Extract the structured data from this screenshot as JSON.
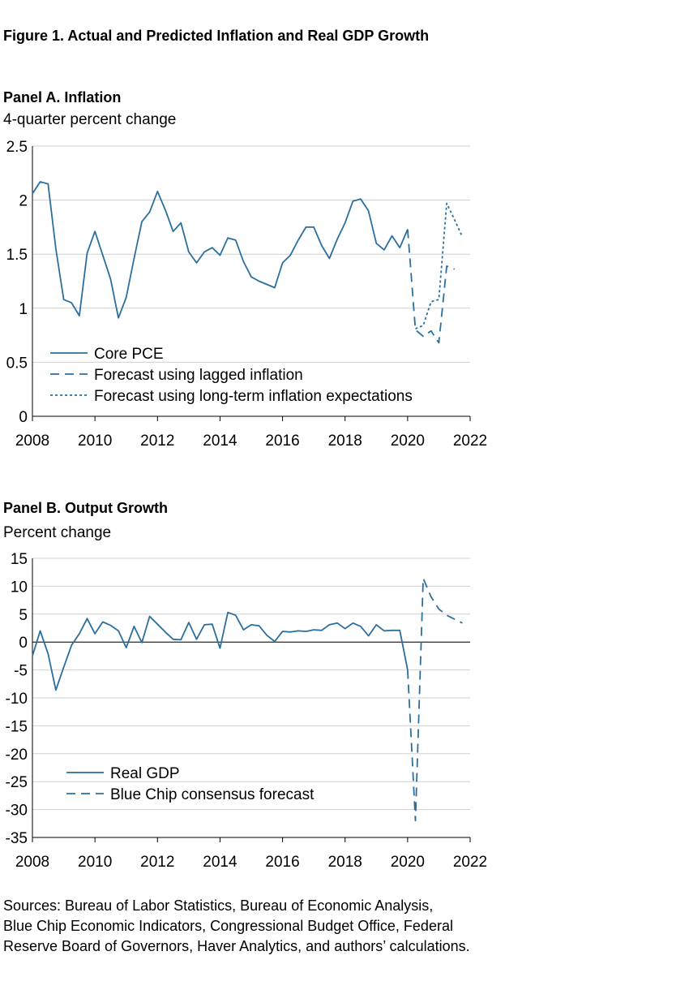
{
  "figure_title": "Figure 1. Actual and Predicted Inflation and Real GDP Growth",
  "sources": [
    "Sources: Bureau of Labor Statistics, Bureau of Economic Analysis,",
    "Blue Chip Economic Indicators, Congressional Budget Office, Federal",
    "Reserve Board of Governors, Haver Analytics, and authors’ calculations."
  ],
  "colors": {
    "series": "#2b6f9e",
    "grid": "#d0d0d0",
    "axis": "#000000"
  },
  "chart_data": [
    {
      "type": "line",
      "title": "Panel A. Inflation",
      "ylabel": "4-quarter percent change",
      "xlim": [
        2008,
        2022
      ],
      "ylim": [
        0,
        2.5
      ],
      "x_ticks": [
        "2008",
        "2010",
        "2012",
        "2014",
        "2016",
        "2018",
        "2020",
        "2022"
      ],
      "y_ticks": [
        "0",
        "0.5",
        "1",
        "1.5",
        "2",
        "2.5"
      ],
      "grid": true,
      "legend_position": "bottom-left",
      "series": [
        {
          "name": "Core PCE",
          "style": "solid",
          "x": [
            2008.0,
            2008.25,
            2008.5,
            2008.75,
            2009.0,
            2009.25,
            2009.5,
            2009.75,
            2010.0,
            2010.25,
            2010.5,
            2010.75,
            2011.0,
            2011.25,
            2011.5,
            2011.75,
            2012.0,
            2012.25,
            2012.5,
            2012.75,
            2013.0,
            2013.25,
            2013.5,
            2013.75,
            2014.0,
            2014.25,
            2014.5,
            2014.75,
            2015.0,
            2015.25,
            2015.5,
            2015.75,
            2016.0,
            2016.25,
            2016.5,
            2016.75,
            2017.0,
            2017.25,
            2017.5,
            2017.75,
            2018.0,
            2018.25,
            2018.5,
            2018.75,
            2019.0,
            2019.25,
            2019.5,
            2019.75,
            2020.0
          ],
          "y": [
            2.06,
            2.17,
            2.15,
            1.55,
            1.08,
            1.05,
            0.93,
            1.51,
            1.71,
            1.49,
            1.27,
            0.91,
            1.1,
            1.46,
            1.8,
            1.89,
            2.08,
            1.91,
            1.71,
            1.79,
            1.52,
            1.42,
            1.52,
            1.56,
            1.49,
            1.65,
            1.63,
            1.43,
            1.29,
            1.25,
            1.22,
            1.19,
            1.42,
            1.49,
            1.63,
            1.75,
            1.75,
            1.58,
            1.46,
            1.64,
            1.79,
            1.99,
            2.01,
            1.9,
            1.6,
            1.54,
            1.67,
            1.56,
            1.73
          ]
        },
        {
          "name": "Forecast using lagged inflation",
          "style": "dashed",
          "x": [
            2020.0,
            2020.25,
            2020.5,
            2020.75,
            2021.0,
            2021.25,
            2021.5
          ],
          "y": [
            1.73,
            0.8,
            0.74,
            0.79,
            0.68,
            1.39,
            1.36
          ]
        },
        {
          "name": "Forecast using long-term inflation expectations",
          "style": "dotted",
          "x": [
            2020.25,
            2020.5,
            2020.75,
            2021.0,
            2021.25,
            2021.5,
            2021.75
          ],
          "y": [
            0.81,
            0.84,
            1.06,
            1.08,
            1.97,
            1.82,
            1.66
          ]
        }
      ]
    },
    {
      "type": "line",
      "title": "Panel B. Output Growth",
      "ylabel": "Percent change",
      "xlim": [
        2008,
        2022
      ],
      "ylim": [
        -35,
        15
      ],
      "x_ticks": [
        "2008",
        "2010",
        "2012",
        "2014",
        "2016",
        "2018",
        "2020",
        "2022"
      ],
      "y_ticks": [
        "-35",
        "-30",
        "-25",
        "-20",
        "-15",
        "-10",
        "-5",
        "0",
        "5",
        "10",
        "15"
      ],
      "grid": true,
      "zero_line": true,
      "legend_position": "bottom-left",
      "series": [
        {
          "name": "Real GDP",
          "style": "solid",
          "x": [
            2008.0,
            2008.25,
            2008.5,
            2008.75,
            2009.0,
            2009.25,
            2009.5,
            2009.75,
            2010.0,
            2010.25,
            2010.5,
            2010.75,
            2011.0,
            2011.25,
            2011.5,
            2011.75,
            2012.0,
            2012.25,
            2012.5,
            2012.75,
            2013.0,
            2013.25,
            2013.5,
            2013.75,
            2014.0,
            2014.25,
            2014.5,
            2014.75,
            2015.0,
            2015.25,
            2015.5,
            2015.75,
            2016.0,
            2016.25,
            2016.5,
            2016.75,
            2017.0,
            2017.25,
            2017.5,
            2017.75,
            2018.0,
            2018.25,
            2018.5,
            2018.75,
            2019.0,
            2019.25,
            2019.5,
            2019.75,
            2020.0
          ],
          "y": [
            -2.5,
            2.0,
            -2.1,
            -8.6,
            -4.5,
            -0.6,
            1.5,
            4.2,
            1.5,
            3.6,
            3.0,
            2.0,
            -1.0,
            2.8,
            -0.1,
            4.6,
            3.2,
            1.8,
            0.5,
            0.4,
            3.5,
            0.5,
            3.1,
            3.2,
            -1.1,
            5.3,
            4.8,
            2.2,
            3.1,
            2.9,
            1.2,
            0.1,
            1.9,
            1.8,
            2.0,
            1.9,
            2.2,
            2.1,
            3.1,
            3.4,
            2.4,
            3.4,
            2.8,
            1.1,
            3.1,
            2.0,
            2.1,
            2.1,
            -5.0
          ]
        },
        {
          "name": "Blue Chip consensus forecast",
          "style": "dashed",
          "x": [
            2020.0,
            2020.25,
            2020.5,
            2020.75,
            2021.0,
            2021.25,
            2021.5,
            2021.75
          ],
          "y": [
            -5.0,
            -32.0,
            11.4,
            8.1,
            5.9,
            4.8,
            4.1,
            3.4
          ]
        }
      ]
    }
  ]
}
